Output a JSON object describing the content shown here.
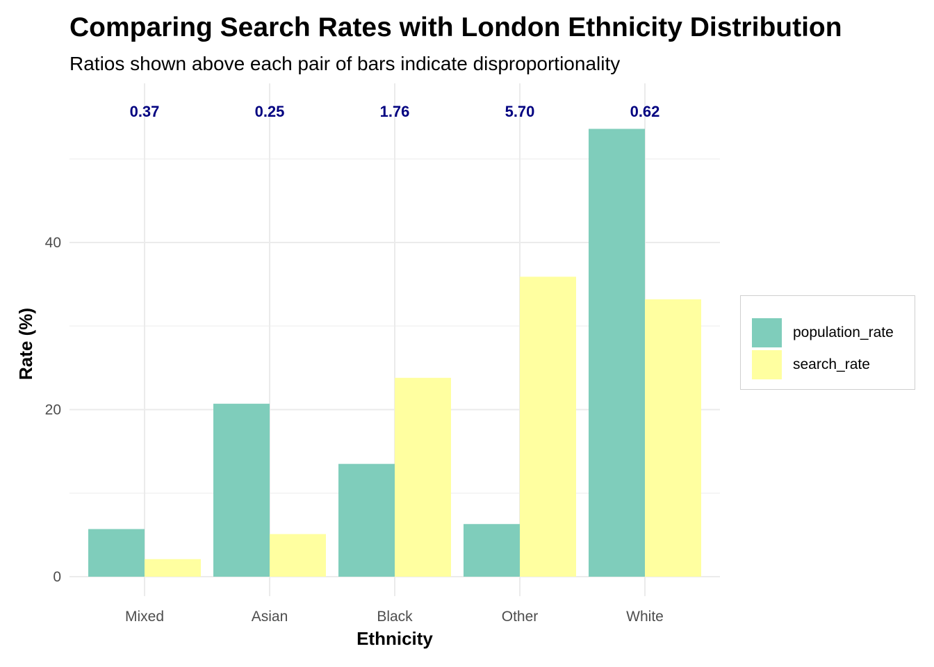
{
  "chart_data": {
    "type": "bar",
    "title": "Comparing Search Rates with London Ethnicity Distribution",
    "subtitle": "Ratios shown above each pair of bars indicate disproportionality",
    "xlabel": "Ethnicity",
    "ylabel": "Rate (%)",
    "categories": [
      "Mixed",
      "Asian",
      "Black",
      "Other",
      "White"
    ],
    "series": [
      {
        "name": "population_rate",
        "color": "#7fcdbb",
        "values": [
          5.7,
          20.7,
          13.5,
          6.3,
          53.6
        ]
      },
      {
        "name": "search_rate",
        "color": "#ffffa0",
        "values": [
          2.1,
          5.1,
          23.8,
          35.9,
          33.2
        ]
      }
    ],
    "annotations": [
      "0.37",
      "0.25",
      "1.76",
      "5.70",
      "0.62"
    ],
    "ylim": [
      0,
      57.2
    ],
    "yticks": [
      "0",
      "20",
      "40"
    ],
    "grid": true,
    "legend_position": "right"
  }
}
